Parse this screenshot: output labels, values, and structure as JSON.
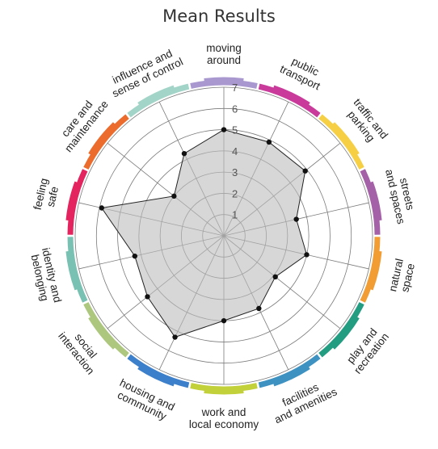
{
  "title": "Mean Results",
  "chart_data": {
    "type": "radar",
    "title": "Mean Results",
    "r_min": 0,
    "r_max": 7,
    "ticks": [
      1,
      2,
      3,
      4,
      5,
      6,
      7
    ],
    "categories": [
      {
        "label": "moving around",
        "lines": [
          "moving",
          "around"
        ],
        "color": "#a997cf"
      },
      {
        "label": "public transport",
        "lines": [
          "public",
          "transport"
        ],
        "color": "#c93a9a"
      },
      {
        "label": "traffic and parking",
        "lines": [
          "traffic and",
          "parking"
        ],
        "color": "#f6cf45"
      },
      {
        "label": "streets and spaces",
        "lines": [
          "streets",
          "and spaces"
        ],
        "color": "#a561a7"
      },
      {
        "label": "natural space",
        "lines": [
          "natural",
          "space"
        ],
        "color": "#f19d34"
      },
      {
        "label": "play and recreation",
        "lines": [
          "play and",
          "recreation"
        ],
        "color": "#239d82"
      },
      {
        "label": "facilities and amenities",
        "lines": [
          "facilities",
          "and amenities"
        ],
        "color": "#3d92c2"
      },
      {
        "label": "work and local economy",
        "lines": [
          "work and",
          "local economy"
        ],
        "color": "#c2d03a"
      },
      {
        "label": "housing and community",
        "lines": [
          "housing and",
          "community"
        ],
        "color": "#3c7fcb"
      },
      {
        "label": "social interaction",
        "lines": [
          "social",
          "interaction"
        ],
        "color": "#adc77e"
      },
      {
        "label": "identity and belonging",
        "lines": [
          "identity and",
          "belonging"
        ],
        "color": "#79c1b2"
      },
      {
        "label": "feeling safe",
        "lines": [
          "feeling",
          "safe"
        ],
        "color": "#e3245e"
      },
      {
        "label": "care and maintenance",
        "lines": [
          "care and",
          "maintenance"
        ],
        "color": "#ec6c2e"
      },
      {
        "label": "influence and sense of control",
        "lines": [
          "influence and",
          "sense of control"
        ],
        "color": "#a2d4c8"
      }
    ],
    "values": [
      5,
      4.9,
      4.9,
      3.5,
      4,
      3.1,
      3.8,
      4,
      5.3,
      4.6,
      4.3,
      5.9,
      3,
      4.3
    ]
  }
}
